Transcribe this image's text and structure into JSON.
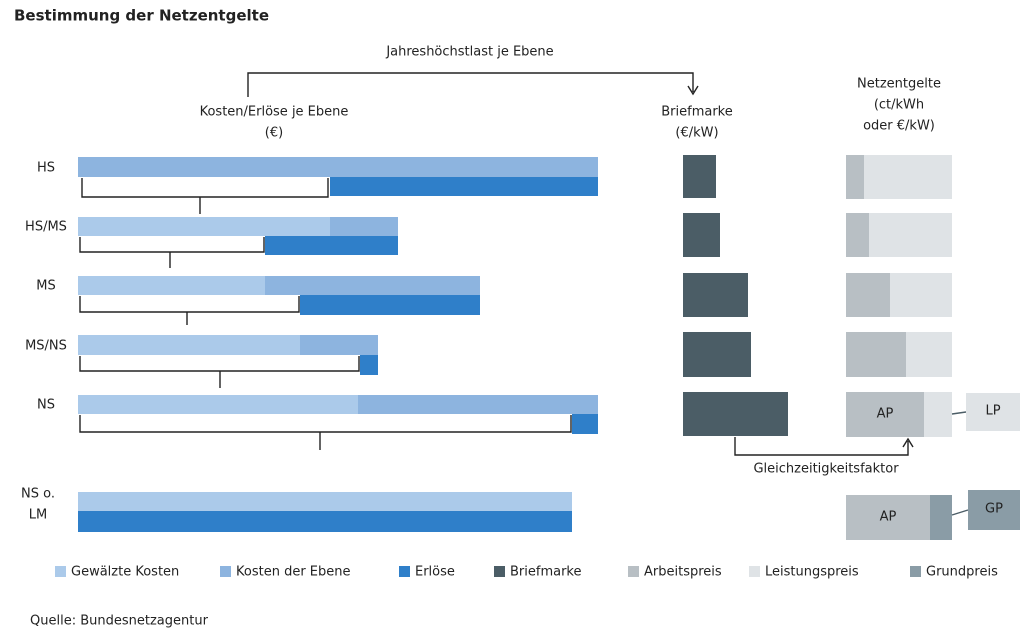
{
  "header": {
    "title": "Bestimmung der Netzentgelte"
  },
  "top_arrow_label": "Jahreshöchstlast je Ebene",
  "columns": {
    "costs": {
      "title": "Kosten/Erlöse je Ebene",
      "unit": "(€)"
    },
    "briefmarke": {
      "title": "Briefmarke",
      "unit": "(€/kW)"
    },
    "netzentgelte": {
      "lines": [
        "Netzentgelte",
        "(ct/kWh",
        "oder €/kW)"
      ]
    }
  },
  "rows": [
    "HS",
    "HS/MS",
    "MS",
    "MS/NS",
    "NS"
  ],
  "last_row": [
    "NS o.",
    "LM"
  ],
  "ns_boxes": {
    "ap": "AP",
    "lp": "LP"
  },
  "lm_boxes": {
    "ap": "AP",
    "gp": "GP"
  },
  "factor_label": "Gleichzeitigkeitsfaktor",
  "legend": [
    "Gewälzte Kosten",
    "Kosten der Ebene",
    "Erlöse",
    "Briefmarke",
    "Arbeitspreis",
    "Leistungspreis",
    "Grundpreis"
  ],
  "source": "Quelle: Bundesnetzagentur"
}
